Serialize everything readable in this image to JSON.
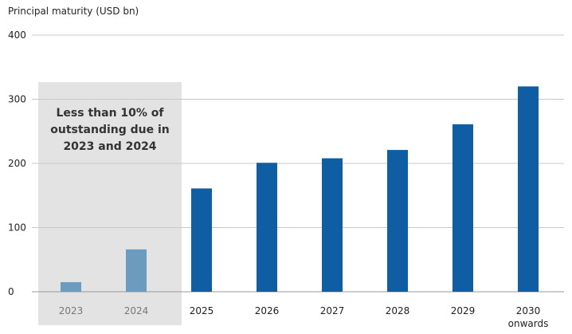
{
  "chart_data": {
    "type": "bar",
    "title": "",
    "xlabel": "",
    "ylabel": "Principal maturity (USD bn)",
    "ylim": [
      0,
      400
    ],
    "yticks": [
      0,
      100,
      200,
      300,
      400
    ],
    "grid": true,
    "categories": [
      [
        "2023"
      ],
      [
        "2024"
      ],
      [
        "2025"
      ],
      [
        "2026"
      ],
      [
        "2027"
      ],
      [
        "2028"
      ],
      [
        "2029"
      ],
      [
        "2030",
        "onwards"
      ]
    ],
    "values": [
      15,
      66,
      161,
      201,
      208,
      221,
      261,
      320
    ],
    "highlight": {
      "categories": [
        "2023",
        "2024"
      ],
      "text": [
        "Less than 10% of",
        "outstanding due in",
        "2023 and 2024"
      ]
    },
    "colors": {
      "highlighted_bar": "#6b9bbf",
      "bar": "#0f5ea4",
      "highlight_region": "#e3e3e3",
      "gridline": "#c8c8c8",
      "muted_label": "#777777",
      "label": "#222222"
    }
  }
}
